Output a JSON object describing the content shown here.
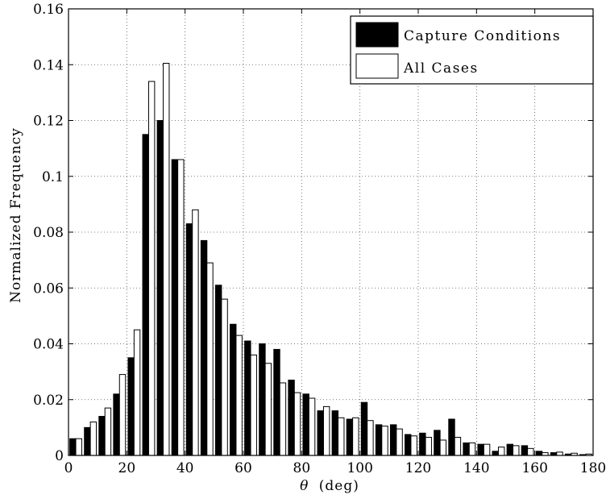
{
  "chart_data": {
    "type": "bar",
    "xlabel_symbol": "θ",
    "xlabel_unit": "(deg)",
    "ylabel": "Normalized Frequency",
    "xlim": [
      0,
      180
    ],
    "ylim": [
      0,
      0.16
    ],
    "xticks": [
      0,
      20,
      40,
      60,
      80,
      100,
      120,
      140,
      160,
      180
    ],
    "yticks": [
      0,
      0.02,
      0.04,
      0.06,
      0.08,
      0.1,
      0.12,
      0.14,
      0.16
    ],
    "ytick_labels": [
      "0",
      "0.02",
      "0.04",
      "0.06",
      "0.08",
      "0.1",
      "0.12",
      "0.14",
      "0.16"
    ],
    "grid": true,
    "legend_position": "top-right",
    "bin_width": 5,
    "x": [
      2.5,
      7.5,
      12.5,
      17.5,
      22.5,
      27.5,
      32.5,
      37.5,
      42.5,
      47.5,
      52.5,
      57.5,
      62.5,
      67.5,
      72.5,
      77.5,
      82.5,
      87.5,
      92.5,
      97.5,
      102.5,
      107.5,
      112.5,
      117.5,
      122.5,
      127.5,
      132.5,
      137.5,
      142.5,
      147.5,
      152.5,
      157.5,
      162.5,
      167.5,
      172.5,
      177.5
    ],
    "series": [
      {
        "name": "Capture Conditions",
        "color": "#000000",
        "values": [
          0.006,
          0.01,
          0.014,
          0.022,
          0.035,
          0.115,
          0.12,
          0.106,
          0.083,
          0.077,
          0.061,
          0.047,
          0.041,
          0.04,
          0.038,
          0.027,
          0.022,
          0.016,
          0.016,
          0.013,
          0.019,
          0.011,
          0.011,
          0.0075,
          0.008,
          0.009,
          0.013,
          0.0045,
          0.004,
          0.0015,
          0.004,
          0.0035,
          0.0015,
          0.001,
          0.0005,
          0.0003
        ]
      },
      {
        "name": "All Cases",
        "color": "#ffffff",
        "values": [
          0.006,
          0.012,
          0.017,
          0.029,
          0.045,
          0.134,
          0.1405,
          0.106,
          0.088,
          0.069,
          0.056,
          0.043,
          0.036,
          0.033,
          0.026,
          0.0225,
          0.0205,
          0.0175,
          0.0135,
          0.0135,
          0.0125,
          0.0105,
          0.0095,
          0.007,
          0.0065,
          0.0055,
          0.0065,
          0.0045,
          0.004,
          0.003,
          0.0035,
          0.0025,
          0.001,
          0.0012,
          0.0008,
          0.0005
        ]
      }
    ]
  }
}
